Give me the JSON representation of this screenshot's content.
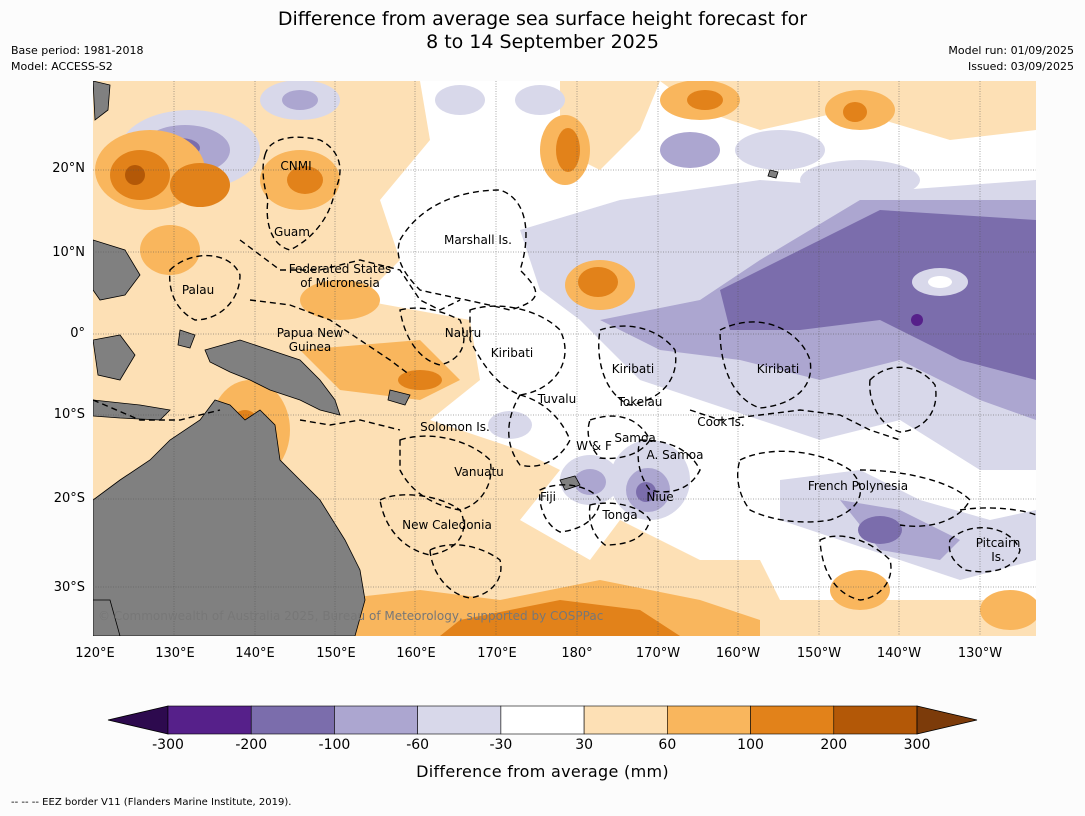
{
  "title_line1": "Difference from average sea surface height forecast for",
  "title_line2": "8 to 14 September 2025",
  "base_period": "Base period: 1981-2018",
  "model": "Model: ACCESS-S2",
  "model_run": "Model run: 01/09/2025",
  "issued": "Issued: 03/09/2025",
  "lat_labels": [
    "20°N",
    "10°N",
    "0°",
    "10°S",
    "20°S",
    "30°S"
  ],
  "lon_labels": [
    "120°E",
    "130°E",
    "140°E",
    "150°E",
    "160°E",
    "170°E",
    "180°",
    "170°W",
    "160°W",
    "150°W",
    "140°W",
    "130°W"
  ],
  "places": {
    "cnmi": "CNMI",
    "guam": "Guam",
    "marshall": "Marshall Is.",
    "fsm1": "Federated States",
    "fsm2": "of Micronesia",
    "palau": "Palau",
    "nauru": "Nauru",
    "kiribati_w": "Kiribati",
    "kiribati_c": "Kiribati",
    "kiribati_e": "Kiribati",
    "png1": "Papua New",
    "png2": "Guinea",
    "tuvalu": "Tuvalu",
    "tokelau": "Tokelau",
    "solomon": "Solomon Is.",
    "cook": "Cook Is.",
    "samoa": "Samoa",
    "wf": "W & F",
    "asamoa": "A. Samoa",
    "vanuatu": "Vanuatu",
    "fiji": "Fiji",
    "niue": "Niue",
    "tonga": "Tonga",
    "frenchpoly": "French Polynesia",
    "newcal": "New Caledonia",
    "pitcairn1": "Pitcairn",
    "pitcairn2": "Is."
  },
  "copyright": "© Commonwealth of Australia 2025, Bureau of Meteorology, supported by COSPPac",
  "colorbar": {
    "ticks": [
      "-300",
      "-200",
      "-100",
      "-60",
      "-30",
      "30",
      "60",
      "100",
      "200",
      "300"
    ],
    "colors": [
      "#2d0a4e",
      "#56208a",
      "#7b6dac",
      "#aca6d0",
      "#d8d8ea",
      "#ffffff",
      "#fde0b5",
      "#f9b65d",
      "#e2821a",
      "#b35807",
      "#7c3b0a"
    ],
    "title": "Difference from average (mm)"
  },
  "footer": "--  --  -- EEZ border V11 (Flanders Marine Institute, 2019)."
}
